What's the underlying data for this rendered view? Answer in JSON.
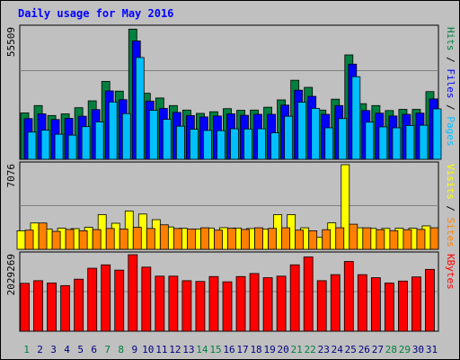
{
  "chart_data": {
    "type": "bar",
    "title": "Daily usage for May 2016",
    "days": [
      "1",
      "2",
      "3",
      "4",
      "5",
      "6",
      "7",
      "8",
      "9",
      "10",
      "11",
      "12",
      "13",
      "14",
      "15",
      "16",
      "17",
      "18",
      "19",
      "20",
      "21",
      "22",
      "23",
      "24",
      "25",
      "26",
      "27",
      "28",
      "29",
      "30",
      "31"
    ],
    "weekend_days": [
      "1",
      "7",
      "8",
      "14",
      "15",
      "21",
      "22",
      "28",
      "29"
    ],
    "panels": [
      {
        "name": "pages-files-hits",
        "max_label": "55509",
        "ylim": [
          0,
          55509
        ],
        "axis_label_parts": [
          "Pages",
          "Files",
          "Hits"
        ],
        "series": [
          {
            "name": "Hits",
            "color": "#008040",
            "values": [
              19600,
              22700,
              18500,
              19200,
              21800,
              24700,
              32900,
              28800,
              55000,
              27900,
              25900,
              22700,
              20800,
              19400,
              20100,
              21400,
              20700,
              20800,
              22000,
              25100,
              33400,
              30400,
              20800,
              25400,
              44100,
              23500,
              22700,
              20600,
              21100,
              21100,
              28600
            ]
          },
          {
            "name": "Files",
            "color": "#0000ff",
            "values": [
              17200,
              19200,
              16800,
              17300,
              18200,
              21000,
              28900,
              25200,
              50000,
              24600,
              21500,
              19800,
              18500,
              17900,
              18300,
              19200,
              18600,
              19000,
              19000,
              22900,
              29200,
              26600,
              19000,
              22700,
              40200,
              20600,
              19500,
              18300,
              19000,
              19500,
              25500
            ]
          },
          {
            "name": "Pages",
            "color": "#00bfff",
            "values": [
              11500,
              12300,
              10600,
              10200,
              13800,
              15800,
              24200,
              19300,
              43000,
              20700,
              16900,
              14000,
              12700,
              12200,
              12100,
              12900,
              12800,
              12900,
              11200,
              18200,
              24100,
              21500,
              13300,
              17200,
              34900,
              15700,
              13700,
              13300,
              14300,
              14400,
              21300
            ]
          }
        ]
      },
      {
        "name": "sites-visits",
        "max_label": "7076",
        "ylim": [
          0,
          7076
        ],
        "axis_label_parts": [
          "Sites",
          "Visits"
        ],
        "series": [
          {
            "name": "Visits",
            "color": "#ffff00",
            "values": [
              1550,
              2200,
              1700,
              1770,
              1730,
              1840,
              2900,
              2180,
              3200,
              2950,
              2480,
              1870,
              1760,
              1700,
              1780,
              1810,
              1780,
              1740,
              1700,
              2900,
              2900,
              1800,
              1000,
              2210,
              7076,
              1800,
              1750,
              1750,
              1760,
              1760,
              1960
            ]
          },
          {
            "name": "Sites",
            "color": "#ff8000",
            "values": [
              1600,
              2200,
              1500,
              1660,
              1550,
              1650,
              1740,
              1700,
              1840,
              1740,
              2050,
              1740,
              1700,
              1800,
              1600,
              1760,
              1660,
              1800,
              1750,
              1800,
              1600,
              1550,
              1640,
              1800,
              2100,
              1800,
              1640,
              1560,
              1640,
              1660,
              1800
            ]
          }
        ]
      },
      {
        "name": "kbytes",
        "max_label": "2029269",
        "ylim": [
          0,
          2029269
        ],
        "axis_label_parts": [
          "KBytes"
        ],
        "series": [
          {
            "name": "KBytes",
            "color": "#ff0000",
            "values": [
              1270000,
              1340000,
              1280000,
              1210000,
              1380000,
              1670000,
              1760000,
              1620000,
              2029269,
              1700000,
              1460000,
              1460000,
              1340000,
              1320000,
              1450000,
              1310000,
              1450000,
              1530000,
              1420000,
              1460000,
              1760000,
              1970000,
              1340000,
              1500000,
              1850000,
              1500000,
              1420000,
              1280000,
              1330000,
              1440000,
              1640000
            ]
          }
        ]
      }
    ],
    "colors": {
      "title": "#0000ff",
      "weekday_label": "#000080",
      "weekend_label": "#008040",
      "panel_bg": "#c0c0c0",
      "page_bg": "#c0c0c0"
    }
  }
}
